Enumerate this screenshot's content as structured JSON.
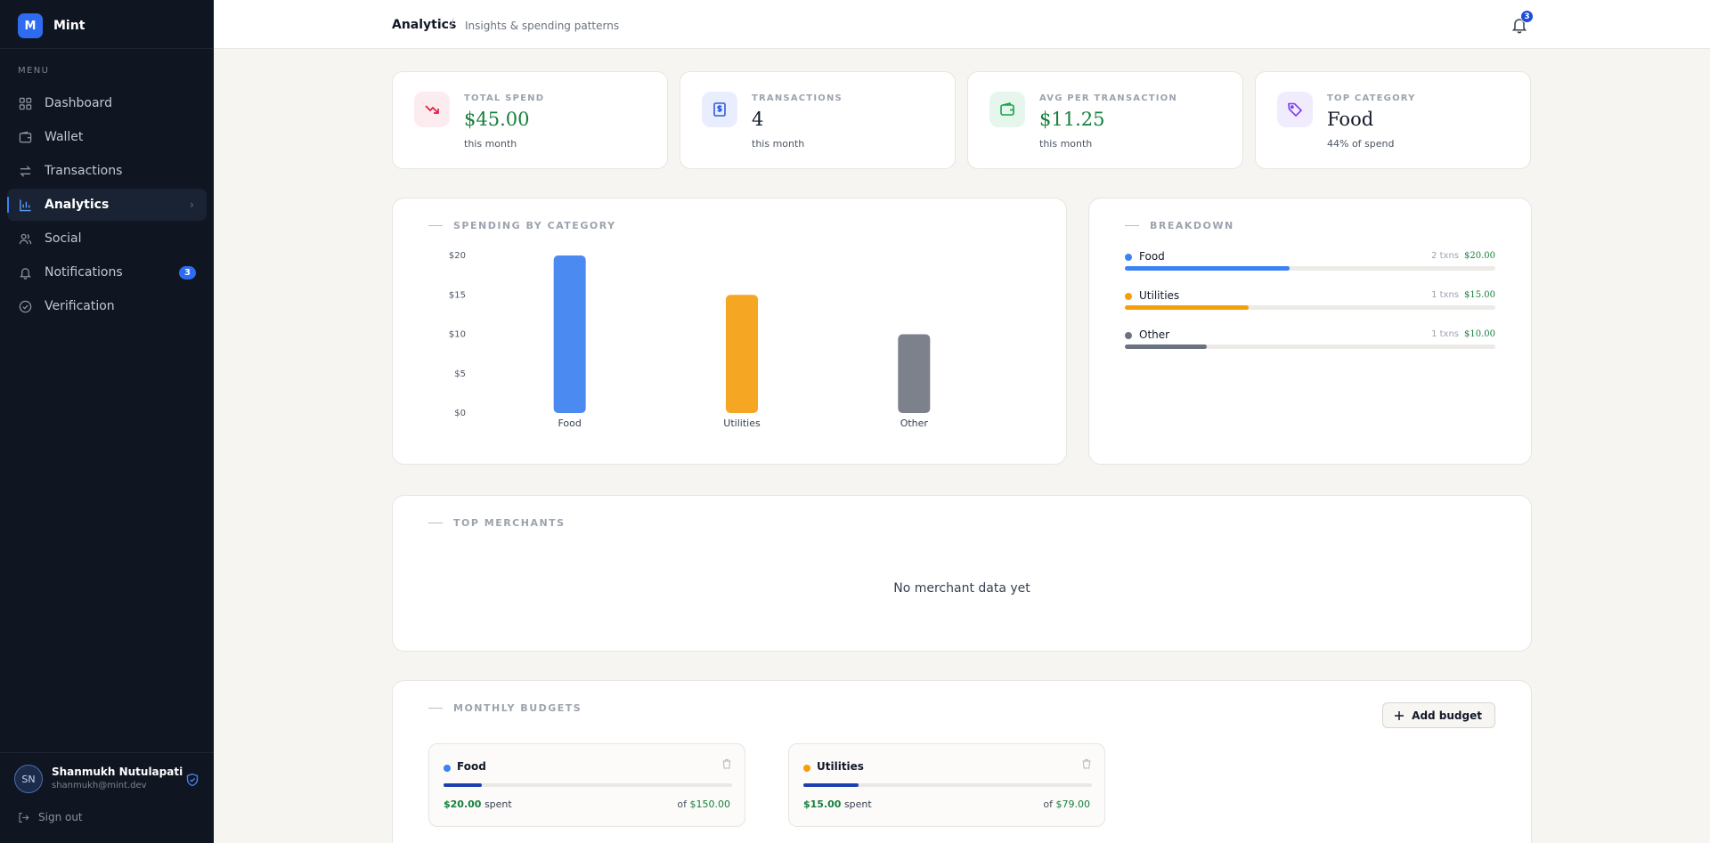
{
  "app": {
    "logo_letter": "M",
    "name": "Mint"
  },
  "sidebar": {
    "menu_label": "MENU",
    "items": [
      {
        "label": "Dashboard",
        "icon": "grid-icon",
        "active": false
      },
      {
        "label": "Wallet",
        "icon": "wallet-icon",
        "active": false
      },
      {
        "label": "Transactions",
        "icon": "arrows-icon",
        "active": false
      },
      {
        "label": "Analytics",
        "icon": "bar-chart-icon",
        "active": true
      },
      {
        "label": "Social",
        "icon": "users-icon",
        "active": false
      },
      {
        "label": "Notifications",
        "icon": "bell-icon",
        "active": false,
        "badge": "3"
      },
      {
        "label": "Verification",
        "icon": "check-circle-icon",
        "active": false
      }
    ],
    "user": {
      "initials": "SN",
      "name": "Shanmukh Nutulapati",
      "email": "shanmukh@mint.dev"
    },
    "sign_out": "Sign out"
  },
  "header": {
    "title": "Analytics",
    "separator": "/",
    "subtitle": "Insights & spending patterns",
    "notification_count": "3"
  },
  "stats": [
    {
      "label": "TOTAL SPEND",
      "value": "$45.00",
      "sub": "this month",
      "icon": "trend-down-icon",
      "icon_bg": "#fdecef",
      "icon_color": "#e11d48",
      "green": true
    },
    {
      "label": "TRANSACTIONS",
      "value": "4",
      "sub": "this month",
      "icon": "receipt-icon",
      "icon_bg": "#e8eefe",
      "icon_color": "#2f5be0",
      "green": false
    },
    {
      "label": "AVG PER TRANSACTION",
      "value": "$11.25",
      "sub": "this month",
      "icon": "wallet-icon",
      "icon_bg": "#e6f6ec",
      "icon_color": "#16a34a",
      "green": true
    },
    {
      "label": "TOP CATEGORY",
      "value": "Food",
      "sub": "44% of spend",
      "icon": "tag-icon",
      "icon_bg": "#f1ecfd",
      "icon_color": "#7c3aed",
      "green": false
    }
  ],
  "spending_panel": {
    "title": "SPENDING BY CATEGORY"
  },
  "chart_data": {
    "type": "bar",
    "categories": [
      "Food",
      "Utilities",
      "Other"
    ],
    "values": [
      20,
      15,
      10
    ],
    "colors": [
      "#4b8af0",
      "#f5a623",
      "#7c818c"
    ],
    "ylim": [
      0,
      20
    ],
    "yticks": [
      0,
      5,
      10,
      15,
      20
    ],
    "ytick_labels": [
      "$0",
      "$5",
      "$10",
      "$15",
      "$20"
    ],
    "title": "SPENDING BY CATEGORY",
    "xlabel": "",
    "ylabel": ""
  },
  "breakdown": {
    "title": "BREAKDOWN",
    "items": [
      {
        "name": "Food",
        "txns": "2 txns",
        "amount": "$20.00",
        "color": "#3b82f6",
        "share": 0.444
      },
      {
        "name": "Utilities",
        "txns": "1 txns",
        "amount": "$15.00",
        "color": "#f59e0b",
        "share": 0.333
      },
      {
        "name": "Other",
        "txns": "1 txns",
        "amount": "$10.00",
        "color": "#6b7280",
        "share": 0.222
      }
    ]
  },
  "merchants": {
    "title": "TOP MERCHANTS",
    "empty": "No merchant data yet"
  },
  "budgets": {
    "title": "MONTHLY BUDGETS",
    "add_label": "Add budget",
    "items": [
      {
        "name": "Food",
        "dot": "#3b82f6",
        "spent": "$20.00",
        "spent_word": "spent",
        "of_word": "of",
        "limit": "$150.00",
        "progress": 0.133
      },
      {
        "name": "Utilities",
        "dot": "#f59e0b",
        "spent": "$15.00",
        "spent_word": "spent",
        "of_word": "of",
        "limit": "$79.00",
        "progress": 0.19
      }
    ]
  }
}
